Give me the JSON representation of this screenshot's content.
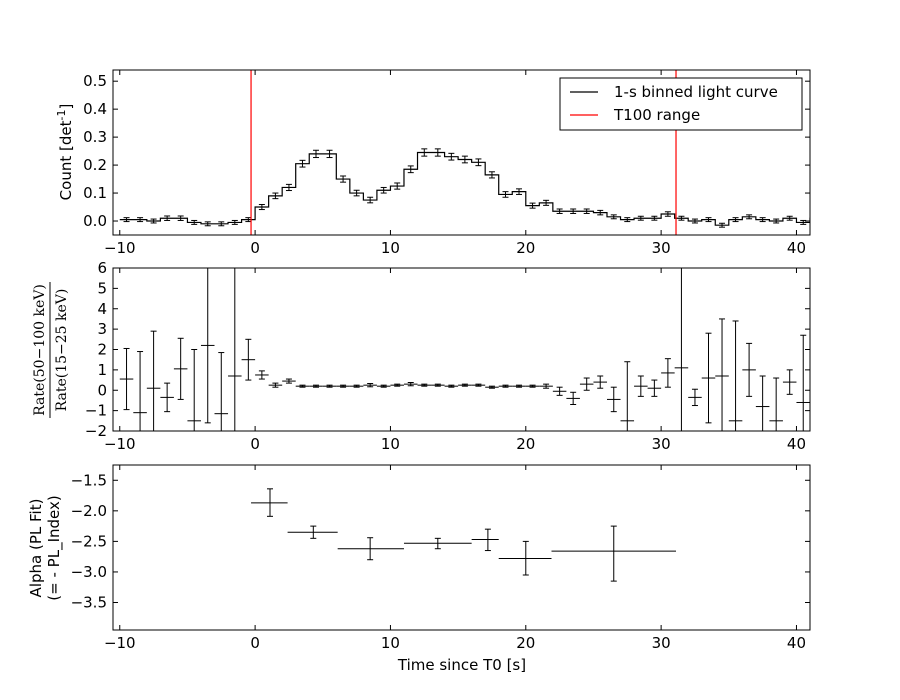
{
  "chart_data": [
    {
      "type": "line",
      "panel": "light-curve",
      "ylabel": "Count [det",
      "ylabel_sup": "-1",
      "ylabel_end": "]",
      "xlim": [
        -10.5,
        41
      ],
      "ylim": [
        -0.05,
        0.54
      ],
      "yticks": [
        "0.0",
        "0.1",
        "0.2",
        "0.3",
        "0.4",
        "0.5"
      ],
      "ytick_values": [
        0.0,
        0.1,
        0.2,
        0.3,
        0.4,
        0.5
      ],
      "xticks": [
        "−10",
        "0",
        "10",
        "20",
        "30",
        "40"
      ],
      "xtick_values": [
        -10,
        0,
        10,
        20,
        30,
        40
      ],
      "x_start": -10,
      "bin_width": 1,
      "values": [
        0.005,
        0.005,
        0.0,
        0.01,
        0.01,
        -0.005,
        -0.01,
        -0.01,
        -0.005,
        0.005,
        0.05,
        0.09,
        0.12,
        0.205,
        0.24,
        0.24,
        0.15,
        0.1,
        0.075,
        0.11,
        0.125,
        0.185,
        0.245,
        0.245,
        0.23,
        0.22,
        0.21,
        0.165,
        0.095,
        0.105,
        0.055,
        0.065,
        0.035,
        0.035,
        0.035,
        0.03,
        0.015,
        0.005,
        0.01,
        0.01,
        0.025,
        0.01,
        0.0,
        0.005,
        -0.015,
        0.005,
        0.015,
        0.005,
        0.0,
        0.01,
        -0.005,
        0.01
      ],
      "errors": [
        0.007,
        0.007,
        0.007,
        0.008,
        0.008,
        0.007,
        0.007,
        0.007,
        0.007,
        0.007,
        0.009,
        0.01,
        0.011,
        0.012,
        0.013,
        0.013,
        0.011,
        0.01,
        0.01,
        0.01,
        0.011,
        0.012,
        0.013,
        0.013,
        0.012,
        0.012,
        0.012,
        0.011,
        0.01,
        0.01,
        0.009,
        0.009,
        0.008,
        0.008,
        0.008,
        0.008,
        0.007,
        0.007,
        0.007,
        0.007,
        0.008,
        0.007,
        0.007,
        0.007,
        0.007,
        0.007,
        0.007,
        0.007,
        0.007,
        0.007,
        0.007,
        0.007
      ],
      "t100_range": [
        -0.3,
        31.1
      ],
      "legend": [
        {
          "label": "1-s binned light curve",
          "color": "#000000"
        },
        {
          "label": "T100 range",
          "color": "#ff0000"
        }
      ],
      "legend_position": "top-right"
    },
    {
      "type": "scatter",
      "panel": "hardness-ratio",
      "ylabel_num": "Rate(50−100 keV)",
      "ylabel_den": "Rate(15−25 keV)",
      "xlim": [
        -10.5,
        41
      ],
      "ylim": [
        -2,
        6
      ],
      "yticks": [
        "−2",
        "−1",
        "0",
        "1",
        "2",
        "3",
        "4",
        "5",
        "6"
      ],
      "ytick_values": [
        -2,
        -1,
        0,
        1,
        2,
        3,
        4,
        5,
        6
      ],
      "xticks": [
        "−10",
        "0",
        "10",
        "20",
        "30",
        "40"
      ],
      "xtick_values": [
        -10,
        0,
        10,
        20,
        30,
        40
      ],
      "x_start": -10,
      "bin_width": 1,
      "values": [
        0.55,
        -1.1,
        0.1,
        -0.35,
        1.05,
        -1.5,
        2.2,
        -1.15,
        0.7,
        1.5,
        0.75,
        0.25,
        0.45,
        0.2,
        0.2,
        0.2,
        0.2,
        0.2,
        0.25,
        0.2,
        0.25,
        0.3,
        0.25,
        0.25,
        0.2,
        0.25,
        0.25,
        0.15,
        0.2,
        0.2,
        0.2,
        0.2,
        -0.05,
        -0.4,
        0.3,
        0.4,
        -0.45,
        -1.5,
        0.2,
        0.1,
        0.85,
        1.1,
        -0.35,
        0.6,
        0.7,
        -1.5,
        1.0,
        -0.8,
        -1.5,
        0.4,
        -0.6,
        0.3
      ],
      "errors": [
        1.5,
        3.0,
        2.8,
        0.7,
        1.5,
        3.5,
        3.8,
        3.0,
        5.5,
        1.0,
        0.2,
        0.1,
        0.1,
        0.05,
        0.05,
        0.05,
        0.05,
        0.05,
        0.08,
        0.05,
        0.05,
        0.08,
        0.05,
        0.05,
        0.05,
        0.05,
        0.05,
        0.05,
        0.05,
        0.05,
        0.05,
        0.1,
        0.2,
        0.3,
        0.3,
        0.3,
        0.6,
        2.9,
        0.5,
        0.4,
        0.7,
        4.9,
        0.4,
        2.2,
        2.8,
        4.9,
        1.3,
        1.5,
        2.1,
        0.6,
        3.3,
        1.0
      ]
    },
    {
      "type": "scatter",
      "panel": "alpha",
      "ylabel_line1": "Alpha (PL Fit)",
      "ylabel_line2": "(= - PL_Index)",
      "xlabel": "Time since T0 [s]",
      "xlim": [
        -10.5,
        41
      ],
      "ylim": [
        -3.95,
        -1.25
      ],
      "yticks": [
        "−3.5",
        "−3.0",
        "−2.5",
        "−2.0",
        "−1.5"
      ],
      "ytick_values": [
        -3.5,
        -3.0,
        -2.5,
        -2.0,
        -1.5
      ],
      "xticks": [
        "−10",
        "0",
        "10",
        "20",
        "30",
        "40"
      ],
      "xtick_values": [
        -10,
        0,
        10,
        20,
        30,
        40
      ],
      "points": [
        {
          "x": 1.1,
          "xlo": -0.3,
          "xhi": 2.4,
          "y": -1.87,
          "ylo": -2.09,
          "yhi": -1.64
        },
        {
          "x": 4.3,
          "xlo": 2.4,
          "xhi": 6.1,
          "y": -2.35,
          "ylo": -2.45,
          "yhi": -2.25
        },
        {
          "x": 8.5,
          "xlo": 6.1,
          "xhi": 11.0,
          "y": -2.62,
          "ylo": -2.8,
          "yhi": -2.44
        },
        {
          "x": 13.5,
          "xlo": 11.0,
          "xhi": 16.0,
          "y": -2.53,
          "ylo": -2.62,
          "yhi": -2.45
        },
        {
          "x": 17.2,
          "xlo": 16.0,
          "xhi": 18.0,
          "y": -2.47,
          "ylo": -2.65,
          "yhi": -2.3
        },
        {
          "x": 20.0,
          "xlo": 18.0,
          "xhi": 21.9,
          "y": -2.78,
          "ylo": -3.05,
          "yhi": -2.5
        },
        {
          "x": 26.5,
          "xlo": 21.9,
          "xhi": 31.1,
          "y": -2.66,
          "ylo": -3.15,
          "yhi": -2.25
        }
      ]
    }
  ]
}
